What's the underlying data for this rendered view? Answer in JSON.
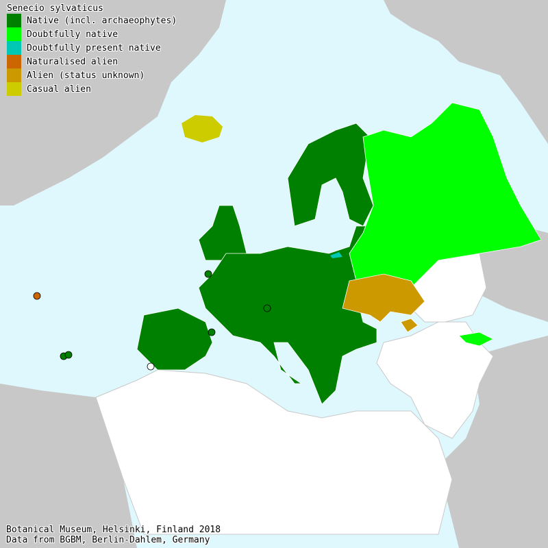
{
  "title": "Senecio sylvaticus",
  "legend": [
    {
      "label": "Native (incl. archaeophytes)",
      "color": "#008000"
    },
    {
      "label": "Doubtfully native",
      "color": "#00ff00"
    },
    {
      "label": "Doubtfully present native",
      "color": "#00c8b4"
    },
    {
      "label": "Naturalised alien",
      "color": "#cc6600"
    },
    {
      "label": "Alien (status unknown)",
      "color": "#cc9900"
    },
    {
      "label": "Casual alien",
      "color": "#cccc00"
    }
  ],
  "colors": {
    "sea": "#dff8fe",
    "outside_area": "#c8c8c8",
    "no_record": "#ffffff"
  },
  "footer": {
    "line1": "Botanical Museum, Helsinki, Finland 2018",
    "line2": "Data from BGBM, Berlin-Dahlem, Germany"
  }
}
